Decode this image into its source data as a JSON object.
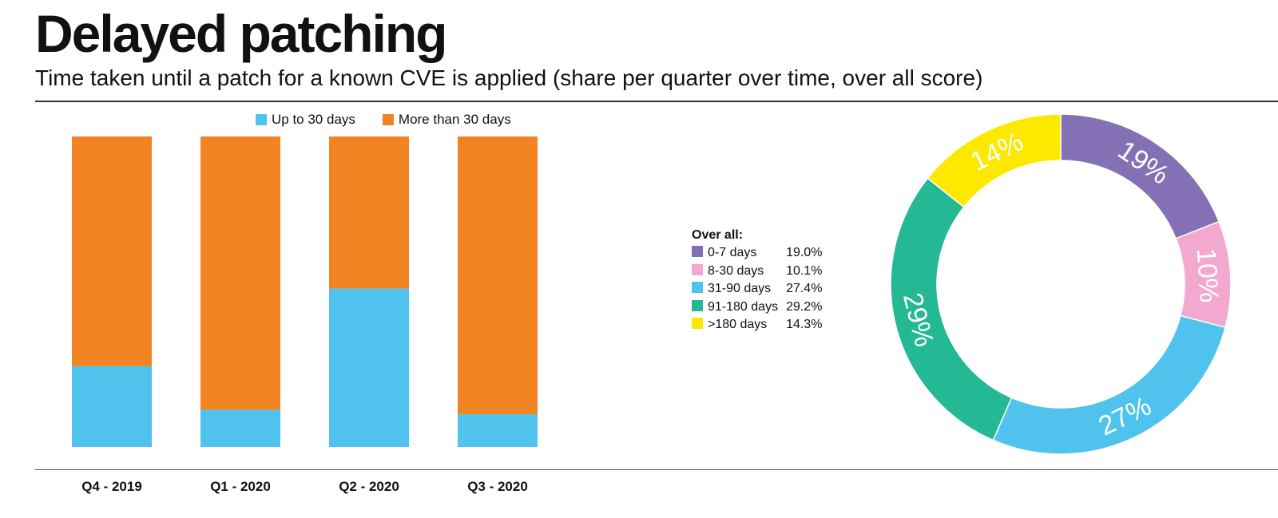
{
  "header": {
    "title": "Delayed patching",
    "subtitle": "Time taken until a patch for a known CVE is applied (share per quarter over time, over all score)"
  },
  "chart_data": [
    {
      "type": "bar",
      "stacked": true,
      "categories": [
        "Q4 - 2019",
        "Q1 - 2020",
        "Q2 - 2020",
        "Q3 - 2020"
      ],
      "series": [
        {
          "name": "Up to 30 days",
          "values": [
            26,
            12,
            51,
            10.5
          ],
          "color": "#4fc3ee"
        },
        {
          "name": "More than 30 days",
          "values": [
            74,
            88,
            49,
            89.5
          ],
          "color": "#f28322"
        }
      ],
      "ylim": [
        0,
        100
      ],
      "legend": "top"
    },
    {
      "type": "pie",
      "donut": true,
      "legend_title": "Over all:",
      "slices": [
        {
          "label": "0-7 days",
          "value": 19.0,
          "display": "19.0%",
          "slice_label": "19%",
          "color": "#8470b4"
        },
        {
          "label": "8-30 days",
          "value": 10.1,
          "display": "10.1%",
          "slice_label": "10%",
          "color": "#f3a9cf"
        },
        {
          "label": "31-90 days",
          "value": 27.4,
          "display": "27.4%",
          "slice_label": "27%",
          "color": "#4fc3ee"
        },
        {
          "label": "91-180 days",
          "value": 29.2,
          "display": "29.2%",
          "slice_label": "29%",
          "color": "#24b894"
        },
        {
          "label": ">180 days",
          "value": 14.3,
          "display": "14.3%",
          "slice_label": "14%",
          "color": "#fde800"
        }
      ],
      "legend": "left"
    }
  ]
}
